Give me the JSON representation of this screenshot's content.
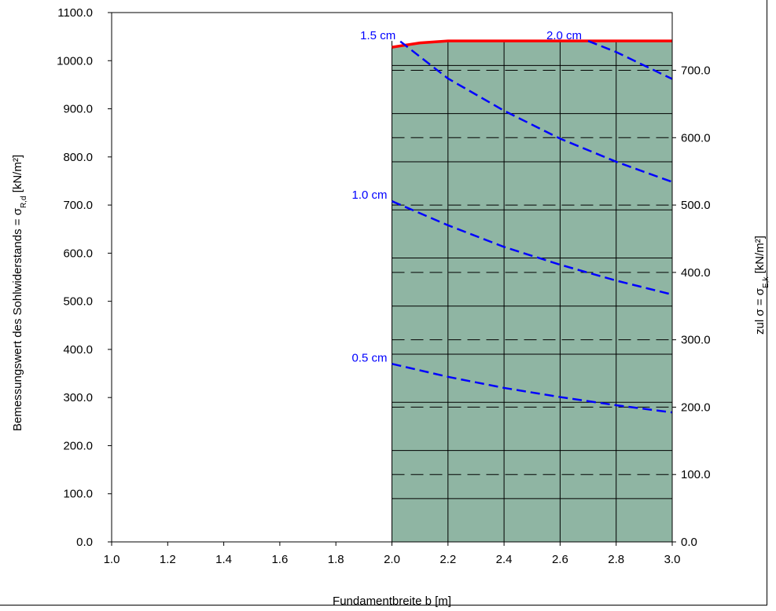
{
  "chart_data": {
    "type": "line",
    "x_axis": {
      "label": "Fundamentbreite b [m]",
      "range": [
        1.0,
        3.0
      ],
      "ticks": [
        "1.0",
        "1.2",
        "1.4",
        "1.6",
        "1.8",
        "2.0",
        "2.2",
        "2.4",
        "2.6",
        "2.8",
        "3.0"
      ]
    },
    "y_left": {
      "label_main": "Bemessungswert des Sohlwiderstands = σ",
      "label_sub": "R,d",
      "label_unit": " [kN/m²]",
      "range": [
        0,
        1100
      ],
      "ticks": [
        "0.0",
        "100.0",
        "200.0",
        "300.0",
        "400.0",
        "500.0",
        "600.0",
        "700.0",
        "800.0",
        "900.0",
        "1000.0",
        "1100.0"
      ]
    },
    "y_right": {
      "label_main": "zul σ = σ",
      "label_sub": "E,k",
      "label_unit": " [kN/m²]",
      "range": [
        0,
        785.7
      ],
      "ticks": [
        "0.0",
        "100.0",
        "200.0",
        "300.0",
        "400.0",
        "500.0",
        "600.0",
        "700.0"
      ]
    },
    "region": {
      "x_start": 2.0,
      "x_end": 3.0,
      "color": "#8fb5a3"
    },
    "upper_limit": {
      "color": "#ff0000",
      "points": [
        [
          2.0,
          1028
        ],
        [
          2.1,
          1037
        ],
        [
          2.2,
          1041
        ],
        [
          3.0,
          1041
        ]
      ]
    },
    "settlement_curves": [
      {
        "label": "0.5 cm",
        "color": "#0000ff",
        "points": [
          [
            2.0,
            370
          ],
          [
            2.2,
            343
          ],
          [
            2.4,
            320
          ],
          [
            2.6,
            301
          ],
          [
            2.8,
            284
          ],
          [
            3.0,
            269
          ]
        ]
      },
      {
        "label": "1.0 cm",
        "color": "#0000ff",
        "points": [
          [
            2.0,
            708
          ],
          [
            2.2,
            658
          ],
          [
            2.4,
            613
          ],
          [
            2.6,
            576
          ],
          [
            2.8,
            543
          ],
          [
            3.0,
            514
          ]
        ]
      },
      {
        "label": "1.5 cm",
        "color": "#0000ff",
        "points": [
          [
            2.03,
            1040
          ],
          [
            2.2,
            963
          ],
          [
            2.4,
            896
          ],
          [
            2.6,
            838
          ],
          [
            2.8,
            790
          ],
          [
            3.0,
            748
          ]
        ]
      },
      {
        "label": "2.0 cm",
        "color": "#0000ff",
        "points": [
          [
            2.7,
            1041
          ],
          [
            2.8,
            1018
          ],
          [
            3.0,
            962
          ]
        ]
      }
    ],
    "grid_solid_y_left": [
      90,
      190,
      290,
      390,
      490,
      590,
      690,
      790,
      890,
      990
    ],
    "grid_dashed_y_right": [
      100,
      200,
      300,
      400,
      500,
      600,
      700
    ],
    "grid_x": [
      2.2,
      2.4,
      2.6,
      2.8
    ],
    "grid": true
  }
}
